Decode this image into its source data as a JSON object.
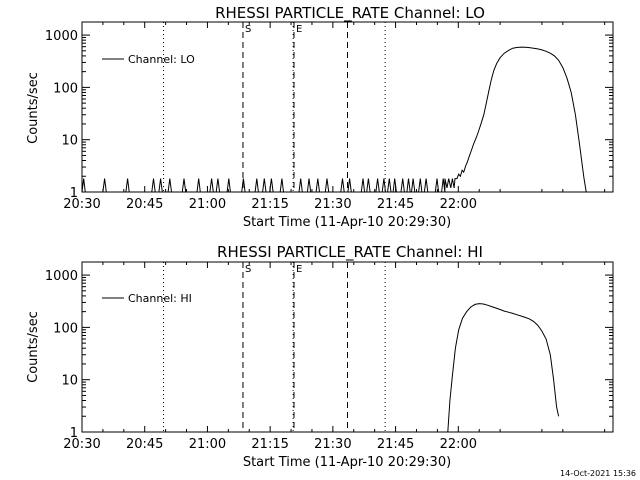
{
  "timestamp": "14-Oct-2021 15:36",
  "chart_data": [
    {
      "type": "line",
      "title": "RHESSI PARTICLE_RATE Channel: LO",
      "xlabel": "Start Time (11-Apr-10 20:29:30)",
      "ylabel": "Counts/sec",
      "x_unit": "minutes after 20:30",
      "x_ticks": [
        "20:30",
        "20:45",
        "21:00",
        "21:15",
        "21:30",
        "21:45",
        "22:00"
      ],
      "y_ticks": [
        "1",
        "10",
        "100",
        "1000"
      ],
      "ylim": [
        1,
        1000
      ],
      "yscale": "log",
      "legend": "Channel: LO",
      "legend_position": "top-left",
      "markers": [
        {
          "label": "S",
          "x": 38.5,
          "style": "dashed"
        },
        {
          "label": "E",
          "x": 50.7,
          "style": "dashed"
        }
      ],
      "marker_lines": [
        {
          "x": 19.5,
          "style": "dotted"
        },
        {
          "x": 50.5,
          "style": "dotted"
        },
        {
          "x": 63.5,
          "style": "dashed"
        },
        {
          "x": 72.5,
          "style": "dotted"
        }
      ],
      "series": [
        {
          "name": "Channel: LO",
          "points": [
            [
              0,
              1
            ],
            [
              0.4,
              1.8
            ],
            [
              0.8,
              1
            ],
            [
              5,
              1
            ],
            [
              5.4,
              1.8
            ],
            [
              5.8,
              1
            ],
            [
              10.5,
              1
            ],
            [
              10.9,
              1.8
            ],
            [
              11.3,
              1
            ],
            [
              16.7,
              1
            ],
            [
              17.1,
              1.8
            ],
            [
              17.5,
              1
            ],
            [
              18.4,
              1
            ],
            [
              18.8,
              1.8
            ],
            [
              19.2,
              1
            ],
            [
              20.6,
              1
            ],
            [
              21,
              1.8
            ],
            [
              21.4,
              1
            ],
            [
              24,
              1
            ],
            [
              24.4,
              1.8
            ],
            [
              24.8,
              1
            ],
            [
              27.5,
              1
            ],
            [
              27.9,
              1.8
            ],
            [
              28.3,
              1
            ],
            [
              30.6,
              1
            ],
            [
              31,
              1.8
            ],
            [
              31.4,
              1
            ],
            [
              32.1,
              1
            ],
            [
              32.5,
              1.8
            ],
            [
              32.9,
              1
            ],
            [
              34.7,
              1
            ],
            [
              35.1,
              1.8
            ],
            [
              35.5,
              1
            ],
            [
              38.2,
              1
            ],
            [
              38.6,
              1.8
            ],
            [
              39,
              1
            ],
            [
              41.4,
              1
            ],
            [
              41.8,
              1.8
            ],
            [
              42.2,
              1
            ],
            [
              43.2,
              1
            ],
            [
              43.6,
              1.8
            ],
            [
              44,
              1
            ],
            [
              44.9,
              1
            ],
            [
              45.3,
              1.8
            ],
            [
              45.7,
              1
            ],
            [
              47.4,
              1
            ],
            [
              47.8,
              1.8
            ],
            [
              48.2,
              1
            ],
            [
              51.9,
              1
            ],
            [
              52.3,
              1.8
            ],
            [
              52.7,
              1
            ],
            [
              53.9,
              1
            ],
            [
              54.3,
              1.8
            ],
            [
              54.7,
              1
            ],
            [
              56,
              1
            ],
            [
              56.4,
              1.8
            ],
            [
              56.8,
              1
            ],
            [
              58.2,
              1
            ],
            [
              58.6,
              1.8
            ],
            [
              59,
              1
            ],
            [
              61.9,
              1
            ],
            [
              62.3,
              1.8
            ],
            [
              62.7,
              1
            ],
            [
              63.6,
              1
            ],
            [
              64,
              1.8
            ],
            [
              64.4,
              1
            ],
            [
              66.8,
              1
            ],
            [
              67.2,
              1.8
            ],
            [
              67.6,
              1
            ],
            [
              68.1,
              1
            ],
            [
              68.5,
              1.8
            ],
            [
              68.9,
              1
            ],
            [
              70.3,
              1
            ],
            [
              70.7,
              1.8
            ],
            [
              71.1,
              1
            ],
            [
              71.8,
              1
            ],
            [
              72.2,
              1.8
            ],
            [
              72.6,
              1
            ],
            [
              73.1,
              1
            ],
            [
              73.5,
              1.8
            ],
            [
              73.9,
              1
            ],
            [
              74.4,
              1
            ],
            [
              74.8,
              1.8
            ],
            [
              75.2,
              1
            ],
            [
              76.3,
              1
            ],
            [
              76.7,
              1.8
            ],
            [
              77.1,
              1
            ],
            [
              77.7,
              1
            ],
            [
              78.1,
              1.8
            ],
            [
              78.5,
              1
            ],
            [
              78.8,
              1
            ],
            [
              79.2,
              1.8
            ],
            [
              79.6,
              1
            ],
            [
              80.5,
              1
            ],
            [
              80.9,
              1.8
            ],
            [
              81.3,
              1
            ],
            [
              81.9,
              1
            ],
            [
              82.3,
              1.8
            ],
            [
              82.7,
              1
            ],
            [
              84.5,
              1
            ],
            [
              84.9,
              1.8
            ],
            [
              85.3,
              1
            ],
            [
              86,
              1
            ],
            [
              86.4,
              1.8
            ],
            [
              86.8,
              1
            ],
            [
              86.8,
              1.8
            ],
            [
              87.3,
              1.2
            ],
            [
              87.7,
              1.8
            ],
            [
              88.2,
              1.2
            ],
            [
              88.6,
              1.8
            ],
            [
              89.0,
              1.2
            ],
            [
              89.2,
              1.8
            ],
            [
              89.7,
              1.8
            ],
            [
              90.1,
              2.2
            ],
            [
              90.5,
              2.0
            ],
            [
              90.9,
              2.6
            ],
            [
              91.3,
              2.4
            ],
            [
              91.8,
              3.2
            ],
            [
              92.2,
              3.8
            ],
            [
              92.6,
              4.8
            ],
            [
              93.2,
              6.5
            ],
            [
              93.7,
              8.5
            ],
            [
              94.3,
              11
            ],
            [
              94.9,
              15
            ],
            [
              95.5,
              21
            ],
            [
              96.1,
              30
            ],
            [
              96.7,
              50
            ],
            [
              97.3,
              85
            ],
            [
              97.9,
              140
            ],
            [
              98.5,
              210
            ],
            [
              99.2,
              290
            ],
            [
              100,
              370
            ],
            [
              101,
              450
            ],
            [
              102,
              510
            ],
            [
              103,
              560
            ],
            [
              104,
              580
            ],
            [
              105,
              590
            ],
            [
              106,
              585
            ],
            [
              107,
              575
            ],
            [
              108,
              560
            ],
            [
              109,
              545
            ],
            [
              110,
              520
            ],
            [
              111,
              490
            ],
            [
              112,
              450
            ],
            [
              113,
              400
            ],
            [
              114,
              330
            ],
            [
              115,
              240
            ],
            [
              116,
              150
            ],
            [
              117,
              80
            ],
            [
              118,
              30
            ],
            [
              119,
              8
            ],
            [
              120,
              2
            ],
            [
              120.6,
              1
            ]
          ]
        }
      ]
    },
    {
      "type": "line",
      "title": "RHESSI PARTICLE_RATE Channel: HI",
      "xlabel": "Start Time (11-Apr-10 20:29:30)",
      "ylabel": "Counts/sec",
      "x_unit": "minutes after 20:30",
      "x_ticks": [
        "20:30",
        "20:45",
        "21:00",
        "21:15",
        "21:30",
        "21:45",
        "22:00"
      ],
      "y_ticks": [
        "1",
        "10",
        "100",
        "1000"
      ],
      "ylim": [
        1,
        1000
      ],
      "yscale": "log",
      "legend": "Channel: HI",
      "legend_position": "top-left",
      "markers": [
        {
          "label": "S",
          "x": 38.5,
          "style": "dashed"
        },
        {
          "label": "E",
          "x": 50.7,
          "style": "dashed"
        }
      ],
      "marker_lines": [
        {
          "x": 19.5,
          "style": "dotted"
        },
        {
          "x": 50.5,
          "style": "dotted"
        },
        {
          "x": 63.5,
          "style": "dashed"
        },
        {
          "x": 72.5,
          "style": "dotted"
        }
      ],
      "series": [
        {
          "name": "Channel: HI",
          "points": [
            [
              87.5,
              1
            ],
            [
              88.0,
              4
            ],
            [
              88.6,
              12
            ],
            [
              89.3,
              40
            ],
            [
              90.1,
              90
            ],
            [
              91,
              150
            ],
            [
              92,
              200
            ],
            [
              93,
              245
            ],
            [
              94,
              275
            ],
            [
              95,
              285
            ],
            [
              96,
              280
            ],
            [
              97,
              265
            ],
            [
              98,
              250
            ],
            [
              99,
              235
            ],
            [
              100,
              220
            ],
            [
              101,
              205
            ],
            [
              102,
              195
            ],
            [
              103,
              185
            ],
            [
              104,
              175
            ],
            [
              105,
              165
            ],
            [
              106,
              155
            ],
            [
              107,
              145
            ],
            [
              108,
              130
            ],
            [
              109,
              110
            ],
            [
              110,
              85
            ],
            [
              111,
              60
            ],
            [
              112,
              30
            ],
            [
              112.8,
              10
            ],
            [
              113.5,
              3
            ],
            [
              114,
              2
            ]
          ]
        }
      ]
    }
  ]
}
